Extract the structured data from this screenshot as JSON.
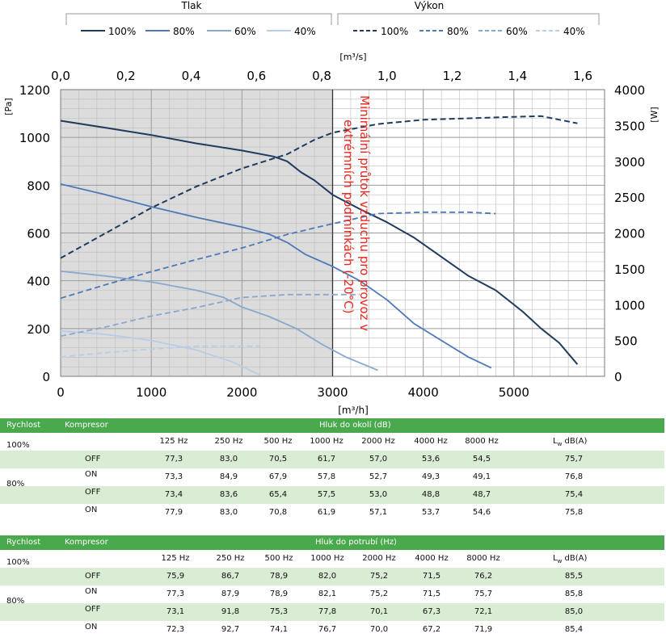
{
  "legend": {
    "tlak_title": "Tlak",
    "vykon_title": "Výkon",
    "tlak_items": [
      "100%",
      "80%",
      "60%",
      "40%"
    ],
    "vykon_items": [
      "100%",
      "80%",
      "60%",
      "40%"
    ],
    "colors": [
      "#1f3b5e",
      "#4e79b8",
      "#88a8d0",
      "#b9cde6"
    ]
  },
  "chart_data": {
    "type": "line",
    "top_axis_label": "[m³/s]",
    "top_ticks": [
      "0,0",
      "0,2",
      "0,4",
      "0,6",
      "0,8",
      "1,0",
      "1,2",
      "1,4",
      "1,6"
    ],
    "x_label": "[m³/h]",
    "x_ticks": [
      "0",
      "1000",
      "2000",
      "3000",
      "4000",
      "5000"
    ],
    "xlim": [
      0,
      6000
    ],
    "y_left_label": "[Pa]",
    "y_left_ticks": [
      "0",
      "200",
      "400",
      "600",
      "800",
      "1000",
      "1200"
    ],
    "ylim_left": [
      0,
      1200
    ],
    "y_right_label": "[W]",
    "y_right_ticks": [
      "0",
      "500",
      "1000",
      "1500",
      "2000",
      "2500",
      "3000",
      "3500",
      "4000"
    ],
    "ylim_right": [
      0,
      4000
    ],
    "annotation": {
      "line1": "Minimální průtok vzduchu pro provoz v",
      "line2": "extrémních podmínkách (-20°C)",
      "color": "#e8261e",
      "x_value": 3000
    },
    "shaded_region_x": [
      0,
      3000
    ],
    "series": [
      {
        "name": "100%",
        "group": "Tlak",
        "axis": "left",
        "dashed": false,
        "x": [
          0,
          500,
          1000,
          1500,
          2000,
          2350,
          2500,
          2650,
          2800,
          3000,
          3300,
          3600,
          3900,
          4200,
          4500,
          4800,
          5100,
          5300,
          5500,
          5700
        ],
        "y": [
          1070,
          1040,
          1010,
          975,
          945,
          920,
          900,
          855,
          820,
          760,
          700,
          645,
          580,
          500,
          420,
          360,
          270,
          200,
          140,
          50
        ]
      },
      {
        "name": "80%",
        "group": "Tlak",
        "axis": "left",
        "dashed": false,
        "x": [
          0,
          500,
          1000,
          1500,
          2000,
          2300,
          2500,
          2700,
          3000,
          3300,
          3600,
          3900,
          4200,
          4500,
          4750
        ],
        "y": [
          805,
          760,
          710,
          665,
          625,
          595,
          560,
          510,
          460,
          400,
          320,
          220,
          150,
          80,
          35
        ]
      },
      {
        "name": "60%",
        "group": "Tlak",
        "axis": "left",
        "dashed": false,
        "x": [
          0,
          500,
          1000,
          1500,
          1800,
          2000,
          2300,
          2600,
          2900,
          3150,
          3500
        ],
        "y": [
          440,
          420,
          395,
          360,
          330,
          290,
          250,
          200,
          130,
          80,
          25
        ]
      },
      {
        "name": "40%",
        "group": "Tlak",
        "axis": "left",
        "dashed": false,
        "x": [
          0,
          500,
          1000,
          1500,
          1900,
          2200
        ],
        "y": [
          190,
          175,
          150,
          110,
          60,
          5
        ]
      },
      {
        "name": "100%",
        "group": "Výkon",
        "axis": "right",
        "dashed": true,
        "x": [
          0,
          500,
          1000,
          1500,
          2000,
          2500,
          2800,
          3000,
          3500,
          4000,
          4500,
          5000,
          5300,
          5700
        ],
        "y": [
          1650,
          2000,
          2350,
          2650,
          2900,
          3100,
          3300,
          3400,
          3520,
          3580,
          3600,
          3620,
          3630,
          3530
        ]
      },
      {
        "name": "80%",
        "group": "Výkon",
        "axis": "right",
        "dashed": true,
        "x": [
          0,
          500,
          1000,
          1500,
          2000,
          2500,
          3000,
          3500,
          4000,
          4500,
          4800
        ],
        "y": [
          1090,
          1280,
          1460,
          1630,
          1790,
          1980,
          2130,
          2270,
          2290,
          2290,
          2270
        ]
      },
      {
        "name": "60%",
        "group": "Výkon",
        "axis": "right",
        "dashed": true,
        "x": [
          0,
          500,
          1000,
          1500,
          2000,
          2500,
          3000,
          3300
        ],
        "y": [
          560,
          690,
          840,
          960,
          1100,
          1140,
          1140,
          1140
        ]
      },
      {
        "name": "40%",
        "group": "Výkon",
        "axis": "right",
        "dashed": true,
        "x": [
          0,
          500,
          1000,
          1500,
          2000,
          2200
        ],
        "y": [
          270,
          330,
          380,
          420,
          420,
          420
        ]
      }
    ]
  },
  "tables": [
    {
      "header": {
        "c1": "Rychlost",
        "c2": "Kompresor",
        "c3": "Hluk do okolí (dB)"
      },
      "bands": [
        "125 Hz",
        "250 Hz",
        "500 Hz",
        "1000 Hz",
        "2000 Hz",
        "4000 Hz",
        "8000 Hz"
      ],
      "lw_main": "L",
      "lw_sub": "w",
      "lw_rest": " dB(A)",
      "speed_100": "100%",
      "speed_80": "80%",
      "rows": [
        {
          "komp": "OFF",
          "values": [
            "77,3",
            "83,0",
            "70,5",
            "61,7",
            "57,0",
            "53,6",
            "54,5"
          ],
          "lw": "75,7"
        },
        {
          "komp": "ON",
          "values": [
            "73,3",
            "84,9",
            "67,9",
            "57,8",
            "52,7",
            "49,3",
            "49,1"
          ],
          "lw": "76,8"
        },
        {
          "komp": "OFF",
          "values": [
            "73,4",
            "83,6",
            "65,4",
            "57,5",
            "53,0",
            "48,8",
            "48,7"
          ],
          "lw": "75,4"
        },
        {
          "komp": "ON",
          "values": [
            "77,9",
            "83,0",
            "70,8",
            "61,9",
            "57,1",
            "53,7",
            "54,6"
          ],
          "lw": "75,8"
        }
      ]
    },
    {
      "header": {
        "c1": "Rychlost",
        "c2": "Kompresor",
        "c3": "Hluk do potrubí (Hz)"
      },
      "bands": [
        "125 Hz",
        "250 Hz",
        "500 Hz",
        "1000 Hz",
        "2000 Hz",
        "4000 Hz",
        "8000 Hz"
      ],
      "lw_main": "L",
      "lw_sub": "w",
      "lw_rest": " dB(A)",
      "speed_100": "100%",
      "speed_80": "80%",
      "rows": [
        {
          "komp": "OFF",
          "values": [
            "75,9",
            "86,7",
            "78,9",
            "82,0",
            "75,2",
            "71,5",
            "76,2"
          ],
          "lw": "85,5"
        },
        {
          "komp": "ON",
          "values": [
            "77,3",
            "87,9",
            "78,9",
            "82,1",
            "75,2",
            "71,5",
            "75,7"
          ],
          "lw": "85,8"
        },
        {
          "komp": "OFF",
          "values": [
            "73,1",
            "91,8",
            "75,3",
            "77,8",
            "70,1",
            "67,3",
            "72,1"
          ],
          "lw": "85,0"
        },
        {
          "komp": "ON",
          "values": [
            "72,3",
            "92,7",
            "74,1",
            "76,7",
            "70,0",
            "67,2",
            "71,9"
          ],
          "lw": "85,4"
        }
      ]
    }
  ]
}
